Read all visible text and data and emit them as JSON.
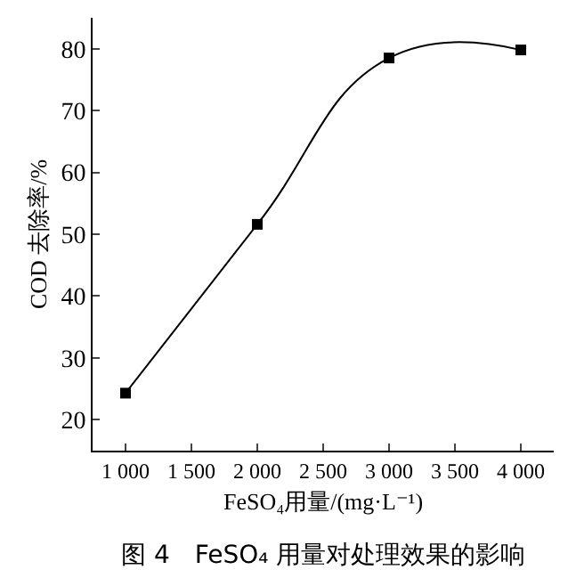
{
  "chart_data": {
    "type": "line",
    "xlabel": "FeSO₄用量/(mg·L⁻¹)",
    "ylabel": "COD 去除率/%",
    "annotations": [
      "图 4　FeSO₄ 用量对处理效果的影响"
    ],
    "x": [
      1000,
      2000,
      3000,
      4000
    ],
    "series": [
      {
        "color": "#000000",
        "values": [
          24.3,
          51.6,
          78.5,
          79.8
        ]
      }
    ],
    "xlim": [
      750,
      4250
    ],
    "xticks": [
      {
        "value": 1000,
        "label": "1 000"
      },
      {
        "value": 1500,
        "label": "1 500"
      },
      {
        "value": 2000,
        "label": "2 000"
      },
      {
        "value": 2500,
        "label": "2 500"
      },
      {
        "value": 3000,
        "label": "3 000"
      },
      {
        "value": 3500,
        "label": "3 500"
      },
      {
        "value": 4000,
        "label": "4 000"
      }
    ],
    "ylim": [
      15,
      85
    ],
    "yticks": [
      20,
      30,
      40,
      50,
      60,
      70,
      80
    ],
    "marker": "square",
    "line_style": "solid",
    "grid": false,
    "legend": false
  }
}
